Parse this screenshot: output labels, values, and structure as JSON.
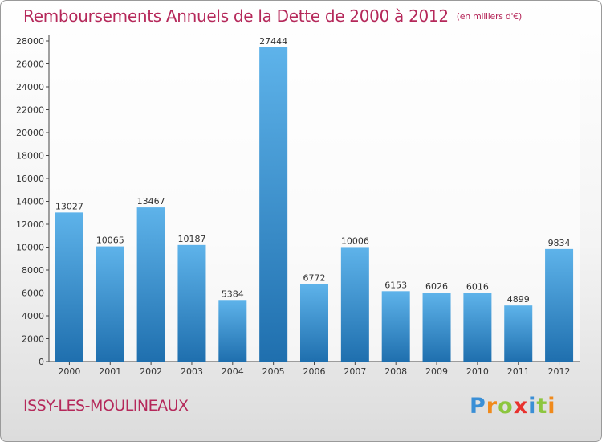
{
  "title": "Remboursements Annuels de la Dette de 2000 à 2012",
  "unit_note": "(en milliers d'€)",
  "city": "ISSY-LES-MOULINEAUX",
  "logo": {
    "letters": [
      "P",
      "r",
      "o",
      "x",
      "i",
      "t",
      "i"
    ],
    "colors": [
      "#3a8fd6",
      "#f08a1c",
      "#8cc63f",
      "#e8322e",
      "#3a8fd6",
      "#8cc63f",
      "#f08a1c"
    ]
  },
  "colors": {
    "accent": "#b5285a",
    "bar_light": "#5eb3ea",
    "bar_dark": "#1f6fae"
  },
  "chart_data": {
    "type": "bar",
    "title": "Remboursements Annuels de la Dette de 2000 à 2012",
    "xlabel": "",
    "ylabel": "",
    "categories": [
      "2000",
      "2001",
      "2002",
      "2003",
      "2004",
      "2005",
      "2006",
      "2007",
      "2008",
      "2009",
      "2010",
      "2011",
      "2012"
    ],
    "values": [
      13027,
      10065,
      13467,
      10187,
      5384,
      27444,
      6772,
      10006,
      6153,
      6026,
      6016,
      4899,
      9834
    ],
    "ylim": [
      0,
      28000
    ],
    "yticks": [
      0,
      2000,
      4000,
      6000,
      8000,
      10000,
      12000,
      14000,
      16000,
      18000,
      20000,
      22000,
      24000,
      26000,
      28000
    ],
    "grid": false,
    "legend": "none",
    "data_labels": true
  }
}
